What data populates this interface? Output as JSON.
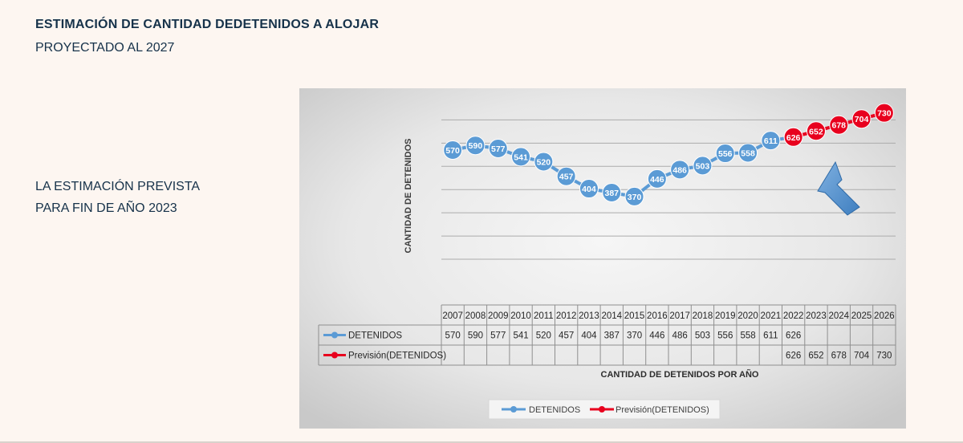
{
  "slide": {
    "title": "ESTIMACIÓN DE CANTIDAD DEDETENIDOS A ALOJAR",
    "subtitle": "PROYECTADO AL 2027",
    "note_line1": "LA ESTIMACIÓN PREVISTA",
    "note_line2": "PARA FIN DE AÑO 2023"
  },
  "chart_data": {
    "type": "line",
    "title": "",
    "ylabel": "CANTIDAD DE DETENIDOS",
    "xlabel": "CANTIDAD DE DETENIDOS POR AÑO",
    "categories": [
      "2007",
      "2008",
      "2009",
      "2010",
      "2011",
      "2012",
      "2013",
      "2014",
      "2015",
      "2016",
      "2017",
      "2018",
      "2019",
      "2020",
      "2021",
      "2022",
      "2023",
      "2024",
      "2025",
      "2026"
    ],
    "ylim": [
      0,
      760
    ],
    "grid": true,
    "data_table": true,
    "legend_position": "bottom",
    "series": [
      {
        "name": "DETENIDOS",
        "color": "#5b9bd5",
        "values": [
          570,
          590,
          577,
          541,
          520,
          457,
          404,
          387,
          370,
          446,
          486,
          503,
          556,
          558,
          611,
          626,
          null,
          null,
          null,
          null
        ]
      },
      {
        "name": "Previsión(DETENIDOS)",
        "color": "#e8001e",
        "values": [
          null,
          null,
          null,
          null,
          null,
          null,
          null,
          null,
          null,
          null,
          null,
          null,
          null,
          null,
          null,
          626,
          652,
          678,
          704,
          730
        ]
      }
    ],
    "annotations": [
      "arrow-pointing-to-2023"
    ]
  }
}
